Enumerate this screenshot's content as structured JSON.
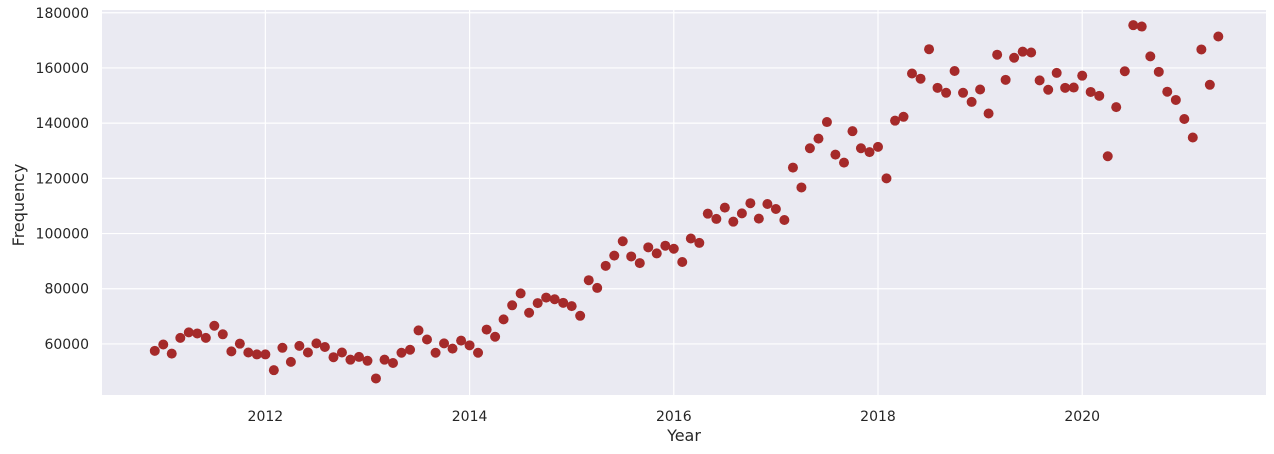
{
  "chart_data": {
    "type": "scatter",
    "title": "",
    "xlabel": "Year",
    "ylabel": "Frequency",
    "xlim": [
      2010.4,
      2021.8
    ],
    "ylim": [
      41500,
      181000
    ],
    "x_ticks": [
      2012,
      2014,
      2016,
      2018,
      2020
    ],
    "x_tick_labels": [
      "2012",
      "2014",
      "2016",
      "2018",
      "2020"
    ],
    "y_ticks": [
      60000,
      80000,
      100000,
      120000,
      140000,
      160000,
      180000
    ],
    "y_tick_labels": [
      "60000",
      "80000",
      "100000",
      "120000",
      "140000",
      "160000",
      "180000"
    ],
    "grid": true,
    "colors": {
      "background": "#eaeaf2",
      "grid": "#ffffff",
      "point": "#a52a2a"
    },
    "series": [
      {
        "name": "Frequency",
        "x": [
          2010.917,
          2011.0,
          2011.083,
          2011.167,
          2011.25,
          2011.333,
          2011.417,
          2011.5,
          2011.583,
          2011.667,
          2011.75,
          2011.833,
          2011.917,
          2012.0,
          2012.083,
          2012.167,
          2012.25,
          2012.333,
          2012.417,
          2012.5,
          2012.583,
          2012.667,
          2012.75,
          2012.833,
          2012.917,
          2013.0,
          2013.083,
          2013.167,
          2013.25,
          2013.333,
          2013.417,
          2013.5,
          2013.583,
          2013.667,
          2013.75,
          2013.833,
          2013.917,
          2014.0,
          2014.083,
          2014.167,
          2014.25,
          2014.333,
          2014.417,
          2014.5,
          2014.583,
          2014.667,
          2014.75,
          2014.833,
          2014.917,
          2015.0,
          2015.083,
          2015.167,
          2015.25,
          2015.333,
          2015.417,
          2015.5,
          2015.583,
          2015.667,
          2015.75,
          2015.833,
          2015.917,
          2016.0,
          2016.083,
          2016.167,
          2016.25,
          2016.333,
          2016.417,
          2016.5,
          2016.583,
          2016.667,
          2016.75,
          2016.833,
          2016.917,
          2017.0,
          2017.083,
          2017.167,
          2017.25,
          2017.333,
          2017.417,
          2017.5,
          2017.583,
          2017.667,
          2017.75,
          2017.833,
          2017.917,
          2018.0,
          2018.083,
          2018.167,
          2018.25,
          2018.333,
          2018.417,
          2018.5,
          2018.583,
          2018.667,
          2018.75,
          2018.833,
          2018.917,
          2019.0,
          2019.083,
          2019.167,
          2019.25,
          2019.333,
          2019.417,
          2019.5,
          2019.583,
          2019.667,
          2019.75,
          2019.833,
          2019.917,
          2020.0,
          2020.083,
          2020.167,
          2020.25,
          2020.333,
          2020.417,
          2020.5,
          2020.583,
          2020.667,
          2020.75,
          2020.833,
          2020.917,
          2021.0,
          2021.083,
          2021.167,
          2021.25,
          2021.333
        ],
        "y": [
          57500,
          59800,
          56500,
          62200,
          64200,
          63800,
          62200,
          66600,
          63500,
          57300,
          60100,
          56900,
          56200,
          56200,
          50500,
          58600,
          53500,
          59300,
          56900,
          60200,
          58900,
          55200,
          56900,
          54300,
          55300,
          53900,
          47500,
          54300,
          53100,
          56800,
          57900,
          64900,
          61600,
          56800,
          60200,
          58300,
          61200,
          59500,
          56800,
          65200,
          62600,
          68900,
          74000,
          78300,
          71300,
          74800,
          76800,
          76200,
          74900,
          73700,
          70200,
          83100,
          80300,
          88300,
          92000,
          97200,
          91700,
          89300,
          95000,
          92800,
          95600,
          94500,
          89700,
          98200,
          96600,
          107200,
          105300,
          109400,
          104300,
          107300,
          111000,
          105400,
          110700,
          108900,
          104900,
          123900,
          116700,
          130900,
          134400,
          140400,
          128600,
          125700,
          137100,
          130900,
          129500,
          131400,
          120000,
          140900,
          142300,
          158000,
          156100,
          166800,
          152800,
          151000,
          158900,
          151000,
          147700,
          152200,
          143500,
          164800,
          155700,
          163700,
          165900,
          165600,
          155500,
          152100,
          158200,
          152800,
          152900,
          157200,
          151300,
          149900,
          128000,
          145800,
          158800,
          175500,
          175000,
          164200,
          158600,
          151400,
          148400,
          141500,
          134800,
          166700,
          153900,
          171400
        ]
      }
    ]
  }
}
